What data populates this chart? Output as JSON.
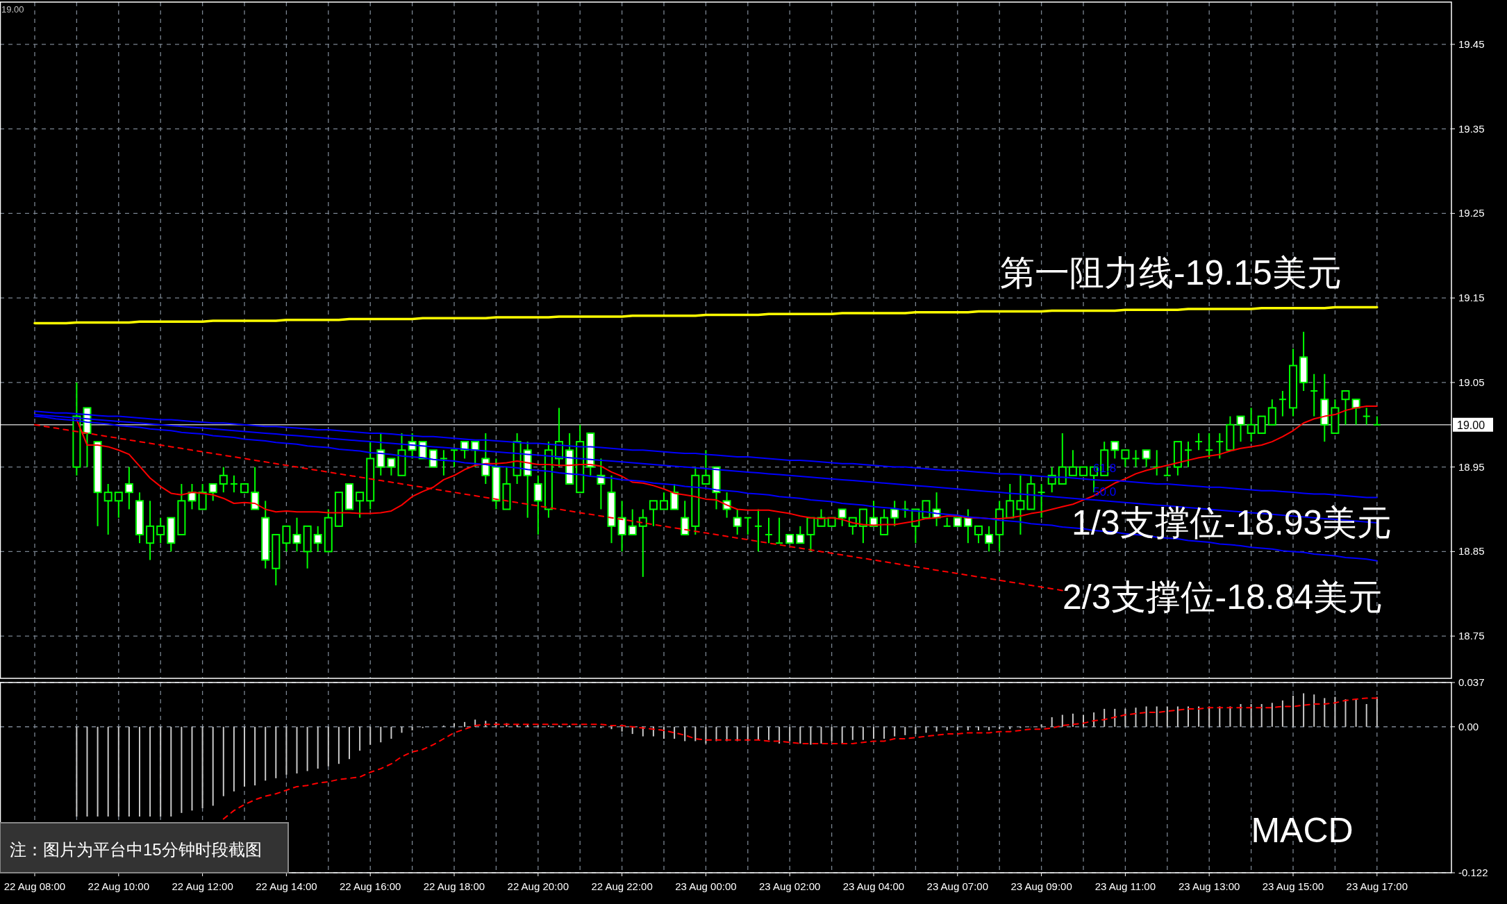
{
  "chart_data": [
    {
      "type": "candlestick",
      "categories": [
        null,
        null,
        null,
        null,
        null,
        null,
        null,
        null,
        null,
        null,
        null,
        null,
        null,
        null,
        null,
        null,
        null,
        null,
        null,
        null,
        null,
        null,
        null,
        null,
        null,
        null,
        null,
        null,
        null,
        null,
        null,
        null,
        null,
        null,
        null,
        null,
        null,
        null,
        null,
        null,
        null,
        null,
        null,
        null,
        null,
        null,
        null,
        null,
        null,
        null,
        null,
        null,
        null,
        null,
        null,
        null,
        null,
        null,
        null,
        null,
        null,
        null,
        null,
        null,
        null,
        null,
        null,
        null,
        null,
        null,
        null,
        null,
        null,
        null,
        null,
        null,
        null,
        null,
        null,
        null,
        null,
        null,
        null,
        null,
        null,
        null,
        null,
        null,
        null,
        null,
        null,
        null,
        null,
        null,
        null,
        null,
        null,
        null,
        null,
        null,
        null,
        null,
        null,
        null,
        null,
        null,
        null,
        null,
        null,
        null,
        null,
        null,
        null,
        null,
        null,
        null,
        null,
        null,
        null,
        null,
        null,
        null,
        null,
        null,
        null,
        null,
        null,
        null,
        null
      ],
      "ohlc": [
        null,
        null,
        null,
        null,
        [
          18.95,
          19.05,
          18.94,
          19.01
        ],
        [
          19.02,
          19.02,
          18.95,
          18.99
        ],
        [
          18.98,
          18.98,
          18.88,
          18.92
        ],
        [
          18.91,
          18.93,
          18.87,
          18.92
        ],
        [
          18.91,
          18.92,
          18.89,
          18.92
        ],
        [
          18.93,
          18.95,
          18.9,
          18.92
        ],
        [
          18.91,
          18.92,
          18.86,
          18.87
        ],
        [
          18.86,
          18.91,
          18.84,
          18.88
        ],
        [
          18.87,
          18.89,
          18.86,
          18.88
        ],
        [
          18.89,
          18.89,
          18.85,
          18.86
        ],
        [
          18.87,
          18.93,
          18.87,
          18.91
        ],
        [
          18.92,
          18.93,
          18.9,
          18.91
        ],
        [
          18.9,
          18.93,
          18.9,
          18.92
        ],
        [
          18.93,
          18.93,
          18.91,
          18.92
        ],
        [
          18.93,
          18.95,
          18.92,
          18.94
        ],
        [
          18.93,
          18.94,
          18.92,
          18.93
        ],
        [
          18.92,
          18.93,
          18.92,
          18.93
        ],
        [
          18.92,
          18.95,
          18.9,
          18.9
        ],
        [
          18.89,
          18.91,
          18.83,
          18.84
        ],
        [
          18.83,
          18.87,
          18.81,
          18.87
        ],
        [
          18.86,
          18.88,
          18.85,
          18.88
        ],
        [
          18.87,
          18.89,
          18.85,
          18.86
        ],
        [
          18.85,
          18.88,
          18.83,
          18.88
        ],
        [
          18.87,
          18.88,
          18.85,
          18.86
        ],
        [
          18.85,
          18.9,
          18.85,
          18.89
        ],
        [
          18.88,
          18.92,
          18.88,
          18.92
        ],
        [
          18.93,
          18.93,
          18.9,
          18.9
        ],
        [
          18.91,
          18.92,
          18.89,
          18.92
        ],
        [
          18.91,
          18.98,
          18.9,
          18.96
        ],
        [
          18.97,
          18.99,
          18.94,
          18.95
        ],
        [
          18.96,
          18.96,
          18.94,
          18.95
        ],
        [
          18.94,
          18.99,
          18.94,
          18.97
        ],
        [
          18.98,
          18.99,
          18.96,
          18.97
        ],
        [
          18.98,
          18.98,
          18.96,
          18.96
        ],
        [
          18.97,
          18.97,
          18.95,
          18.95
        ],
        [
          18.96,
          18.97,
          18.94,
          18.96
        ],
        [
          18.97,
          18.97,
          18.95,
          18.97
        ],
        [
          18.98,
          18.98,
          18.96,
          18.97
        ],
        [
          18.98,
          18.98,
          18.95,
          18.97
        ],
        [
          18.96,
          18.99,
          18.93,
          18.94
        ],
        [
          18.95,
          18.96,
          18.9,
          18.91
        ],
        [
          18.9,
          18.95,
          18.9,
          18.93
        ],
        [
          18.94,
          18.99,
          18.93,
          18.98
        ],
        [
          18.97,
          18.98,
          18.89,
          18.94
        ],
        [
          18.93,
          18.94,
          18.87,
          18.91
        ],
        [
          18.9,
          18.98,
          18.89,
          18.97
        ],
        [
          18.96,
          19.02,
          18.95,
          18.98
        ],
        [
          18.97,
          18.99,
          18.93,
          18.93
        ],
        [
          18.92,
          19.0,
          18.92,
          18.98
        ],
        [
          18.99,
          18.99,
          18.94,
          18.95
        ],
        [
          18.94,
          18.96,
          18.9,
          18.93
        ],
        [
          18.92,
          18.94,
          18.86,
          18.88
        ],
        [
          18.89,
          18.91,
          18.85,
          18.87
        ],
        [
          18.88,
          18.9,
          18.87,
          18.87
        ],
        [
          18.88,
          18.9,
          18.82,
          18.89
        ],
        [
          18.9,
          18.91,
          18.88,
          18.91
        ],
        [
          18.9,
          18.92,
          18.9,
          18.91
        ],
        [
          18.92,
          18.93,
          18.9,
          18.9
        ],
        [
          18.89,
          18.91,
          18.87,
          18.87
        ],
        [
          18.88,
          18.95,
          18.87,
          18.94
        ],
        [
          18.93,
          18.97,
          18.93,
          18.94
        ],
        [
          18.95,
          18.95,
          18.9,
          18.92
        ],
        [
          18.91,
          18.92,
          18.89,
          18.9
        ],
        [
          18.89,
          18.9,
          18.87,
          18.88
        ],
        [
          18.89,
          18.89,
          18.87,
          18.89
        ],
        [
          18.88,
          18.9,
          18.85,
          18.88
        ],
        [
          18.87,
          18.89,
          18.86,
          18.87
        ],
        [
          18.86,
          18.89,
          18.86,
          18.86
        ],
        [
          18.87,
          18.87,
          18.86,
          18.86
        ],
        [
          18.87,
          18.88,
          18.86,
          18.86
        ],
        [
          18.87,
          18.89,
          18.85,
          18.89
        ],
        [
          18.88,
          18.9,
          18.88,
          18.89
        ],
        [
          18.88,
          18.89,
          18.88,
          18.89
        ],
        [
          18.9,
          18.9,
          18.88,
          18.89
        ],
        [
          18.88,
          18.89,
          18.87,
          18.89
        ],
        [
          18.88,
          18.9,
          18.86,
          18.9
        ],
        [
          18.89,
          18.91,
          18.88,
          18.88
        ],
        [
          18.87,
          18.9,
          18.87,
          18.89
        ],
        [
          18.9,
          18.91,
          18.88,
          18.89
        ],
        [
          18.9,
          18.91,
          18.89,
          18.9
        ],
        [
          18.88,
          18.9,
          18.86,
          18.9
        ],
        [
          18.89,
          18.91,
          18.89,
          18.91
        ],
        [
          18.9,
          18.92,
          18.88,
          18.89
        ],
        [
          18.88,
          18.89,
          18.88,
          18.88
        ],
        [
          18.89,
          18.89,
          18.88,
          18.88
        ],
        [
          18.89,
          18.9,
          18.86,
          18.88
        ],
        [
          18.87,
          18.88,
          18.86,
          18.88
        ],
        [
          18.87,
          18.88,
          18.85,
          18.86
        ],
        [
          18.87,
          18.91,
          18.85,
          18.9
        ],
        [
          18.89,
          18.93,
          18.89,
          18.91
        ],
        [
          18.9,
          18.94,
          18.87,
          18.91
        ],
        [
          18.9,
          18.94,
          18.9,
          18.93
        ],
        [
          18.92,
          18.93,
          18.89,
          18.92
        ],
        [
          18.93,
          18.95,
          18.92,
          18.94
        ],
        [
          18.93,
          18.99,
          18.93,
          18.95
        ],
        [
          18.94,
          18.97,
          18.94,
          18.95
        ],
        [
          18.94,
          18.95,
          18.94,
          18.95
        ],
        [
          18.94,
          18.95,
          18.92,
          18.95
        ],
        [
          18.94,
          18.98,
          18.94,
          18.97
        ],
        [
          18.98,
          18.98,
          18.96,
          18.97
        ],
        [
          18.96,
          18.97,
          18.95,
          18.97
        ],
        [
          18.96,
          18.97,
          18.95,
          18.96
        ],
        [
          18.97,
          18.97,
          18.95,
          18.96
        ],
        [
          18.95,
          18.97,
          18.94,
          18.95
        ],
        [
          18.94,
          18.95,
          18.94,
          18.94
        ],
        [
          18.95,
          18.98,
          18.94,
          18.98
        ],
        [
          18.97,
          18.98,
          18.95,
          18.97
        ],
        [
          18.98,
          18.99,
          18.97,
          18.98
        ],
        [
          18.97,
          18.99,
          18.96,
          18.97
        ],
        [
          18.98,
          18.99,
          18.96,
          18.98
        ],
        [
          18.97,
          19.01,
          18.97,
          19.0
        ],
        [
          19.01,
          19.01,
          18.98,
          19.0
        ],
        [
          18.99,
          19.02,
          18.98,
          19.0
        ],
        [
          18.99,
          19.01,
          18.99,
          19.01
        ],
        [
          19.0,
          19.03,
          19.0,
          19.02
        ],
        [
          19.03,
          19.04,
          19.01,
          19.03
        ],
        [
          19.02,
          19.09,
          19.01,
          19.07
        ],
        [
          19.08,
          19.11,
          19.04,
          19.05
        ],
        [
          19.04,
          19.06,
          19.01,
          19.04
        ],
        [
          19.03,
          19.06,
          18.98,
          19.0
        ],
        [
          18.99,
          19.03,
          18.99,
          19.02
        ],
        [
          19.03,
          19.04,
          19.0,
          19.04
        ],
        [
          19.03,
          19.03,
          19.0,
          19.02
        ],
        [
          19.01,
          19.02,
          19.0,
          19.01
        ],
        [
          19.0,
          19.01,
          19.0,
          19.0
        ]
      ],
      "series": [
        {
          "type": "line",
          "color": "#ff0000",
          "values": [
            null,
            null,
            null,
            null,
            19.006,
            18.976,
            18.976,
            18.974,
            18.97,
            18.965,
            18.951,
            18.937,
            18.927,
            18.919,
            18.917,
            18.92,
            18.919,
            18.917,
            18.913,
            18.907,
            18.908,
            18.907,
            18.9,
            18.897,
            18.898,
            18.897,
            18.897,
            18.897,
            18.896,
            18.896,
            18.896,
            18.895,
            18.895,
            18.896,
            18.898,
            18.905,
            18.915,
            18.921,
            18.926,
            18.935,
            18.94,
            18.947,
            18.952,
            18.954,
            18.954,
            18.955,
            18.957,
            18.955,
            18.953,
            18.953,
            18.952,
            18.952,
            18.953,
            18.953,
            18.951,
            18.944,
            18.939,
            18.932,
            18.931,
            18.928,
            18.924,
            18.919,
            18.917,
            18.915,
            18.912,
            18.911,
            18.905,
            18.9,
            18.899,
            18.899,
            18.899,
            18.897,
            18.895,
            18.892,
            18.89,
            18.889,
            18.89,
            18.888,
            18.884,
            18.882,
            18.881,
            18.882,
            18.882,
            18.884,
            18.886,
            18.889,
            18.89,
            18.892,
            18.892,
            18.89,
            18.89,
            18.889,
            18.889,
            18.89,
            18.892,
            18.895,
            18.897,
            18.9,
            18.903,
            18.906,
            18.911,
            18.916,
            18.924,
            18.931,
            18.936,
            18.942,
            18.946,
            18.949,
            18.952,
            18.955,
            18.958,
            18.961,
            18.963,
            18.965,
            18.969,
            18.972,
            18.974,
            18.976,
            18.98,
            18.986,
            18.993,
            19.002,
            19.007,
            19.01,
            19.012,
            19.017,
            19.02,
            19.022,
            19.022
          ]
        },
        {
          "type": "line",
          "color": "#ffff00",
          "values": [
            19.12,
            19.12,
            19.12,
            19.12,
            19.121,
            19.121,
            19.121,
            19.121,
            19.121,
            19.121,
            19.122,
            19.122,
            19.122,
            19.122,
            19.122,
            19.122,
            19.122,
            19.123,
            19.123,
            19.123,
            19.123,
            19.123,
            19.123,
            19.123,
            19.124,
            19.124,
            19.124,
            19.124,
            19.124,
            19.124,
            19.125,
            19.125,
            19.125,
            19.125,
            19.125,
            19.125,
            19.125,
            19.126,
            19.126,
            19.126,
            19.126,
            19.126,
            19.126,
            19.126,
            19.127,
            19.127,
            19.127,
            19.127,
            19.127,
            19.127,
            19.128,
            19.128,
            19.128,
            19.128,
            19.128,
            19.128,
            19.128,
            19.129,
            19.129,
            19.129,
            19.129,
            19.129,
            19.129,
            19.129,
            19.13,
            19.13,
            19.13,
            19.13,
            19.13,
            19.13,
            19.131,
            19.131,
            19.131,
            19.131,
            19.131,
            19.131,
            19.131,
            19.132,
            19.132,
            19.132,
            19.132,
            19.132,
            19.132,
            19.132,
            19.133,
            19.133,
            19.133,
            19.133,
            19.133,
            19.133,
            19.134,
            19.134,
            19.134,
            19.134,
            19.134,
            19.134,
            19.134,
            19.135,
            19.135,
            19.135,
            19.135,
            19.135,
            19.135,
            19.135,
            19.136,
            19.136,
            19.136,
            19.136,
            19.136,
            19.136,
            19.137,
            19.137,
            19.137,
            19.137,
            19.137,
            19.137,
            19.137,
            19.138,
            19.138,
            19.138,
            19.138,
            19.138,
            19.138,
            19.138,
            19.139,
            19.139,
            19.139,
            19.139,
            19.139
          ]
        },
        {
          "type": "line",
          "color": "#0000ff",
          "values": [
            19.016,
            19.015,
            19.014,
            19.014,
            19.013,
            19.012,
            19.011,
            19.01,
            19.01,
            19.009,
            19.008,
            19.007,
            19.006,
            19.006,
            19.005,
            19.004,
            19.003,
            19.002,
            19.002,
            19.001,
            19.0,
            18.999,
            18.998,
            18.998,
            18.997,
            18.996,
            18.995,
            18.994,
            18.994,
            18.993,
            18.992,
            18.991,
            18.99,
            18.99,
            18.989,
            18.988,
            18.987,
            18.986,
            18.986,
            18.985,
            18.984,
            18.983,
            18.982,
            18.982,
            18.981,
            18.98,
            18.979,
            18.978,
            18.978,
            18.977,
            18.976,
            18.975,
            18.974,
            18.974,
            18.973,
            18.972,
            18.971,
            18.97,
            18.97,
            18.969,
            18.968,
            18.967,
            18.966,
            18.966,
            18.965,
            18.964,
            18.963,
            18.962,
            18.962,
            18.961,
            18.96,
            18.959,
            18.958,
            18.958,
            18.957,
            18.956,
            18.955,
            18.954,
            18.954,
            18.953,
            18.952,
            18.951,
            18.95,
            18.95,
            18.949,
            18.948,
            18.947,
            18.946,
            18.946,
            18.945,
            18.944,
            18.943,
            18.942,
            18.942,
            18.941,
            18.94,
            18.939,
            18.938,
            18.938,
            18.937,
            18.936,
            18.935,
            18.934,
            18.934,
            18.933,
            18.932,
            18.931,
            18.93,
            18.93,
            18.929,
            18.928,
            18.927,
            18.926,
            18.926,
            18.925,
            18.924,
            18.923,
            18.922,
            18.922,
            18.921,
            18.92,
            18.919,
            18.918,
            18.918,
            18.917,
            18.916,
            18.915,
            18.914,
            18.914
          ]
        },
        {
          "type": "line",
          "color": "#0000ff",
          "values": [
            19.012,
            19.011,
            19.01,
            19.009,
            19.008,
            19.007,
            19.006,
            19.005,
            19.004,
            19.003,
            19.002,
            19.001,
            19.0,
            18.999,
            18.998,
            18.997,
            18.996,
            18.995,
            18.994,
            18.993,
            18.992,
            18.991,
            18.99,
            18.989,
            18.988,
            18.987,
            18.986,
            18.985,
            18.984,
            18.983,
            18.982,
            18.981,
            18.98,
            18.979,
            18.978,
            18.977,
            18.976,
            18.975,
            18.974,
            18.973,
            18.972,
            18.971,
            18.97,
            18.969,
            18.968,
            18.967,
            18.966,
            18.965,
            18.964,
            18.963,
            18.962,
            18.961,
            18.96,
            18.959,
            18.958,
            18.957,
            18.956,
            18.955,
            18.954,
            18.953,
            18.952,
            18.951,
            18.95,
            18.949,
            18.948,
            18.947,
            18.946,
            18.945,
            18.944,
            18.943,
            18.942,
            18.941,
            18.94,
            18.939,
            18.938,
            18.937,
            18.936,
            18.935,
            18.934,
            18.933,
            18.932,
            18.931,
            18.93,
            18.929,
            18.928,
            18.927,
            18.926,
            18.925,
            18.924,
            18.923,
            18.922,
            18.921,
            18.92,
            18.919,
            18.918,
            18.917,
            18.916,
            18.915,
            18.914,
            18.913,
            18.912,
            18.911,
            18.91,
            18.909,
            18.908,
            18.907,
            18.906,
            18.905,
            18.904,
            18.903,
            18.902,
            18.901,
            18.9,
            18.899,
            18.898,
            18.897,
            18.896,
            18.895,
            18.894,
            18.893,
            18.892,
            18.891,
            18.89,
            18.889,
            18.888,
            18.887,
            18.886,
            18.885,
            18.884
          ]
        },
        {
          "type": "line",
          "color": "#0000ff",
          "values": [
            19.01,
            19.009,
            19.007,
            19.006,
            19.005,
            19.003,
            19.002,
            19.001,
            18.999,
            18.998,
            18.997,
            18.995,
            18.994,
            18.993,
            18.991,
            18.99,
            18.989,
            18.987,
            18.986,
            18.985,
            18.983,
            18.982,
            18.981,
            18.979,
            18.978,
            18.977,
            18.975,
            18.974,
            18.973,
            18.971,
            18.97,
            18.969,
            18.967,
            18.966,
            18.965,
            18.963,
            18.962,
            18.961,
            18.959,
            18.958,
            18.957,
            18.955,
            18.954,
            18.953,
            18.951,
            18.95,
            18.949,
            18.947,
            18.946,
            18.945,
            18.943,
            18.942,
            18.941,
            18.939,
            18.938,
            18.937,
            18.935,
            18.934,
            18.933,
            18.931,
            18.93,
            18.929,
            18.927,
            18.926,
            18.925,
            18.923,
            18.922,
            18.921,
            18.919,
            18.918,
            18.917,
            18.915,
            18.914,
            18.913,
            18.911,
            18.91,
            18.909,
            18.907,
            18.906,
            18.905,
            18.903,
            18.902,
            18.901,
            18.899,
            18.898,
            18.897,
            18.895,
            18.894,
            18.893,
            18.891,
            18.89,
            18.889,
            18.887,
            18.886,
            18.885,
            18.883,
            18.882,
            18.881,
            18.879,
            18.878,
            18.877,
            18.875,
            18.874,
            18.873,
            18.871,
            18.87,
            18.869,
            18.867,
            18.866,
            18.865,
            18.863,
            18.862,
            18.861,
            18.859,
            18.858,
            18.857,
            18.855,
            18.854,
            18.853,
            18.851,
            18.85,
            18.849,
            18.847,
            18.846,
            18.845,
            18.843,
            18.842,
            18.841,
            18.839
          ]
        },
        {
          "type": "line",
          "color": "#ff0000",
          "line_style": "dashed",
          "values": [
            19.0,
            18.998,
            18.996,
            18.994,
            18.992,
            18.99,
            18.988,
            18.986,
            18.984,
            18.982,
            18.98,
            18.978,
            18.976,
            18.974,
            18.972,
            18.97,
            18.968,
            18.966,
            18.964,
            18.962,
            18.96,
            18.958,
            18.956,
            18.954,
            18.952,
            18.95,
            18.948,
            18.946,
            18.944,
            18.942,
            18.94,
            18.938,
            18.936,
            18.934,
            18.932,
            18.93,
            18.928,
            18.926,
            18.924,
            18.922,
            18.92,
            18.918,
            18.916,
            18.914,
            18.912,
            18.91,
            18.908,
            18.906,
            18.904,
            18.902,
            18.9,
            18.898,
            18.896,
            18.894,
            18.892,
            18.89,
            18.888,
            18.886,
            18.884,
            18.882,
            18.88,
            18.878,
            18.876,
            18.874,
            18.872,
            18.87,
            18.868,
            18.866,
            18.864,
            18.862,
            18.86,
            18.858,
            18.856,
            18.854,
            18.852,
            18.85,
            18.848,
            18.846,
            18.844,
            18.842,
            18.84,
            18.838,
            18.836,
            18.834,
            18.832,
            18.83,
            18.828,
            18.826,
            18.824,
            18.822,
            18.82,
            18.818,
            18.816,
            18.814,
            18.812,
            18.81,
            18.808,
            18.806,
            18.804,
            null,
            null,
            null,
            null,
            null,
            null,
            null,
            null,
            null,
            null,
            null,
            null,
            null,
            null,
            null,
            null,
            null,
            null,
            null,
            null,
            null,
            null,
            null,
            null,
            null,
            null,
            null,
            null,
            null,
            null
          ]
        }
      ],
      "ylim": [
        18.7,
        19.5
      ],
      "yticks": [
        18.75,
        18.85,
        18.95,
        19.05,
        19.15,
        19.25,
        19.35,
        19.45
      ],
      "tick_labels": "y",
      "grid": true,
      "ref_lines": [
        {
          "axis": "y",
          "value": 19.0,
          "label": "19.00",
          "color": "#c0c0c0"
        }
      ],
      "annotations": [
        "19.00",
        "第一阻力线-19.15美元",
        "1/3支撑位-18.93美元",
        "2/3支撑位-18.84美元",
        "61.8",
        "50.0"
      ]
    },
    {
      "type": "bar",
      "categories": [
        "22 Aug 08:00",
        null,
        null,
        null,
        null,
        null,
        null,
        null,
        "22 Aug 10:00",
        null,
        null,
        null,
        null,
        null,
        null,
        null,
        "22 Aug 12:00",
        null,
        null,
        null,
        null,
        null,
        null,
        null,
        "22 Aug 14:00",
        null,
        null,
        null,
        null,
        null,
        null,
        null,
        "22 Aug 16:00",
        null,
        null,
        null,
        null,
        null,
        null,
        null,
        "22 Aug 18:00",
        null,
        null,
        null,
        null,
        null,
        null,
        null,
        "22 Aug 20:00",
        null,
        null,
        null,
        null,
        null,
        null,
        null,
        "22 Aug 22:00",
        null,
        null,
        null,
        null,
        null,
        null,
        null,
        "23 Aug 00:00",
        null,
        null,
        null,
        null,
        null,
        null,
        null,
        "23 Aug 02:00",
        null,
        null,
        null,
        null,
        null,
        null,
        null,
        "23 Aug 04:00",
        null,
        null,
        null,
        null,
        null,
        null,
        null,
        "23 Aug 07:00",
        null,
        null,
        null,
        null,
        null,
        null,
        null,
        "23 Aug 09:00",
        null,
        null,
        null,
        null,
        null,
        null,
        null,
        "23 Aug 11:00",
        null,
        null,
        null,
        null,
        null,
        null,
        null,
        "23 Aug 13:00",
        null,
        null,
        null,
        null,
        null,
        null,
        null,
        "23 Aug 15:00",
        null,
        null,
        null,
        null,
        null,
        null,
        null,
        "23 Aug 17:00"
      ],
      "series": [
        {
          "type": "bar",
          "color": "#c8c8c8",
          "values": [
            null,
            null,
            null,
            null,
            -0.075,
            -0.075,
            -0.075,
            -0.075,
            -0.075,
            -0.075,
            -0.075,
            -0.075,
            -0.075,
            -0.075,
            -0.072,
            -0.07,
            -0.068,
            -0.066,
            -0.058,
            -0.054,
            -0.05,
            -0.049,
            -0.045,
            -0.043,
            -0.04,
            -0.039,
            -0.037,
            -0.035,
            -0.033,
            -0.031,
            -0.027,
            -0.02,
            -0.015,
            -0.013,
            -0.01,
            -0.005,
            -0.003,
            -0.001,
            0.0,
            0.001,
            0.003,
            0.004,
            0.006,
            0.005,
            0.004,
            0.003,
            0.002,
            0.002,
            0.001,
            0.001,
            0.001,
            0.001,
            0.001,
            0.0,
            -0.001,
            -0.002,
            -0.004,
            -0.006,
            -0.008,
            -0.008,
            -0.01,
            -0.01,
            -0.012,
            -0.012,
            -0.014,
            -0.012,
            -0.012,
            -0.012,
            -0.012,
            -0.011,
            -0.011,
            -0.014,
            -0.012,
            -0.014,
            -0.015,
            -0.014,
            -0.012,
            -0.014,
            -0.011,
            -0.011,
            -0.01,
            -0.01,
            -0.008,
            -0.007,
            -0.006,
            -0.005,
            -0.004,
            -0.003,
            -0.003,
            -0.003,
            -0.003,
            -0.003,
            -0.002,
            -0.002,
            -0.001,
            0.0,
            0.002,
            0.008,
            0.01,
            0.011,
            0.01,
            0.012,
            0.015,
            0.015,
            0.015,
            0.016,
            0.017,
            0.017,
            0.017,
            0.017,
            0.017,
            0.017,
            0.017,
            0.017,
            0.017,
            0.019,
            0.019,
            0.019,
            0.02,
            0.022,
            0.026,
            0.028,
            0.027,
            0.024,
            0.025,
            0.023,
            0.023,
            0.019,
            0.025
          ]
        },
        {
          "type": "line",
          "color": "#ff0000",
          "line_style": "dashed",
          "values": [
            null,
            null,
            null,
            null,
            null,
            null,
            null,
            null,
            null,
            null,
            null,
            null,
            null,
            null,
            null,
            null,
            null,
            null,
            -0.077,
            -0.07,
            -0.065,
            -0.061,
            -0.058,
            -0.056,
            -0.053,
            -0.05,
            -0.049,
            -0.047,
            -0.046,
            -0.044,
            -0.043,
            -0.042,
            -0.038,
            -0.035,
            -0.031,
            -0.025,
            -0.021,
            -0.019,
            -0.015,
            -0.01,
            -0.005,
            -0.002,
            0.001,
            0.002,
            0.002,
            0.002,
            0.002,
            0.002,
            0.002,
            0.002,
            0.002,
            0.002,
            0.002,
            0.002,
            0.002,
            0.001,
            0.001,
            0.0,
            -0.001,
            -0.002,
            -0.003,
            -0.005,
            -0.007,
            -0.01,
            -0.011,
            -0.011,
            -0.011,
            -0.011,
            -0.011,
            -0.011,
            -0.012,
            -0.012,
            -0.013,
            -0.014,
            -0.014,
            -0.014,
            -0.014,
            -0.014,
            -0.014,
            -0.013,
            -0.012,
            -0.012,
            -0.01,
            -0.01,
            -0.009,
            -0.008,
            -0.007,
            -0.006,
            -0.006,
            -0.005,
            -0.005,
            -0.005,
            -0.004,
            -0.004,
            -0.003,
            -0.002,
            -0.002,
            -0.001,
            0.001,
            0.002,
            0.003,
            0.005,
            0.006,
            0.008,
            0.01,
            0.011,
            0.012,
            0.012,
            0.013,
            0.014,
            0.015,
            0.015,
            0.016,
            0.016,
            0.016,
            0.016,
            0.016,
            0.016,
            0.016,
            0.017,
            0.017,
            0.018,
            0.019,
            0.019,
            0.02,
            0.022,
            0.023,
            0.024,
            0.024
          ]
        }
      ],
      "ylim": [
        -0.122,
        0.037
      ],
      "yticks": [
        0.037,
        {
          "value": 0,
          "label": "0.00"
        },
        {
          "value": -0.122,
          "label": "-0.122"
        }
      ],
      "grid": true,
      "annotations": [
        "MACD",
        "注：图片为平台中15分钟时段截图"
      ]
    }
  ]
}
